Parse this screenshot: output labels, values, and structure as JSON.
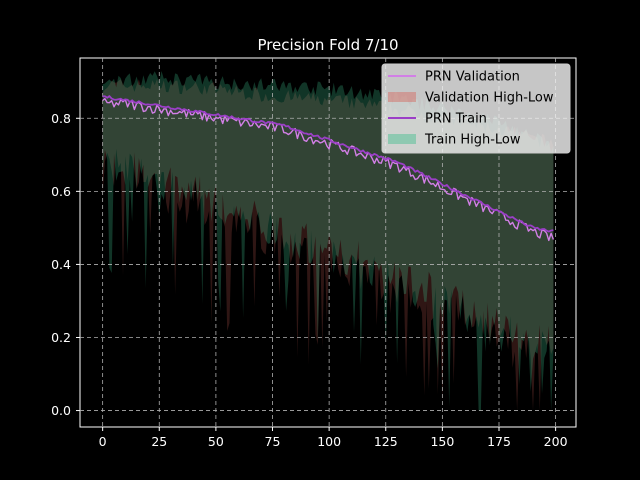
{
  "chart_data": {
    "type": "line",
    "title": "Precision Fold 7/10",
    "xlabel": "",
    "ylabel": "",
    "xlim": [
      -10,
      209
    ],
    "ylim": [
      -0.045,
      0.965
    ],
    "xticks": [
      0,
      25,
      50,
      75,
      100,
      125,
      150,
      175,
      200
    ],
    "yticks": [
      0.0,
      0.2,
      0.4,
      0.6,
      0.8
    ],
    "ytick_labels": [
      "0.0",
      "0.2",
      "0.4",
      "0.6",
      "0.8"
    ],
    "grid": true,
    "grid_style": "dashed",
    "legend_position": "top-right",
    "series": [
      {
        "name": "PRN Validation",
        "kind": "line",
        "color": "#d27fe6",
        "x": [
          0,
          10,
          20,
          30,
          40,
          50,
          60,
          70,
          80,
          90,
          100,
          110,
          120,
          130,
          140,
          150,
          160,
          170,
          180,
          190,
          199
        ],
        "values": [
          0.84,
          0.84,
          0.83,
          0.82,
          0.81,
          0.8,
          0.79,
          0.78,
          0.77,
          0.75,
          0.73,
          0.71,
          0.69,
          0.67,
          0.64,
          0.61,
          0.58,
          0.55,
          0.52,
          0.49,
          0.47
        ]
      },
      {
        "name": "Validation High-Low",
        "kind": "band",
        "color": "#d4635b",
        "x": [
          0,
          25,
          50,
          75,
          100,
          125,
          150,
          175,
          199
        ],
        "high": [
          0.89,
          0.89,
          0.88,
          0.86,
          0.85,
          0.83,
          0.8,
          0.77,
          0.73
        ],
        "low": [
          0.68,
          0.62,
          0.55,
          0.48,
          0.42,
          0.36,
          0.3,
          0.22,
          0.18
        ]
      },
      {
        "name": "PRN Train",
        "kind": "line",
        "color": "#9b3fc7",
        "x": [
          0,
          10,
          20,
          30,
          40,
          50,
          60,
          70,
          80,
          90,
          100,
          110,
          120,
          130,
          140,
          150,
          160,
          170,
          180,
          190,
          199
        ],
        "values": [
          0.86,
          0.85,
          0.84,
          0.83,
          0.82,
          0.81,
          0.8,
          0.79,
          0.78,
          0.76,
          0.74,
          0.72,
          0.7,
          0.68,
          0.65,
          0.62,
          0.59,
          0.56,
          0.53,
          0.5,
          0.49
        ]
      },
      {
        "name": "Train High-Low",
        "kind": "band",
        "color": "#3dbf8c",
        "x": [
          0,
          25,
          50,
          75,
          100,
          125,
          150,
          175,
          199
        ],
        "high": [
          0.9,
          0.91,
          0.9,
          0.89,
          0.88,
          0.86,
          0.83,
          0.79,
          0.72
        ],
        "low": [
          0.7,
          0.64,
          0.57,
          0.5,
          0.44,
          0.38,
          0.31,
          0.22,
          0.17
        ]
      }
    ]
  }
}
